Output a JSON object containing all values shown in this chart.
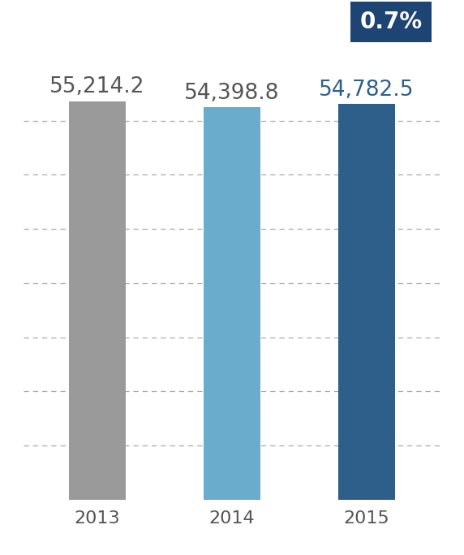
{
  "categories": [
    "2013",
    "2014",
    "2015"
  ],
  "values": [
    55214.2,
    54398.8,
    54782.5
  ],
  "bar_colors": [
    "#9a9a9a",
    "#6aaccc",
    "#2e5f8a"
  ],
  "value_labels": [
    "55,214.2",
    "54,398.8",
    "54,782.5"
  ],
  "value_label_colors": [
    "#555555",
    "#555555",
    "#2e5f8a"
  ],
  "badge_text": "0.7%",
  "badge_bg": "#1e4474",
  "badge_text_color": "#ffffff",
  "ylim_min": 0,
  "ylim_max": 60000,
  "grid_color": "#aaaaaa",
  "background_color": "#ffffff",
  "bar_width": 0.42,
  "n_gridlines": 8,
  "label_fontsize": 19,
  "tick_fontsize": 16,
  "badge_fontsize": 20,
  "xtick_color": "#555555"
}
